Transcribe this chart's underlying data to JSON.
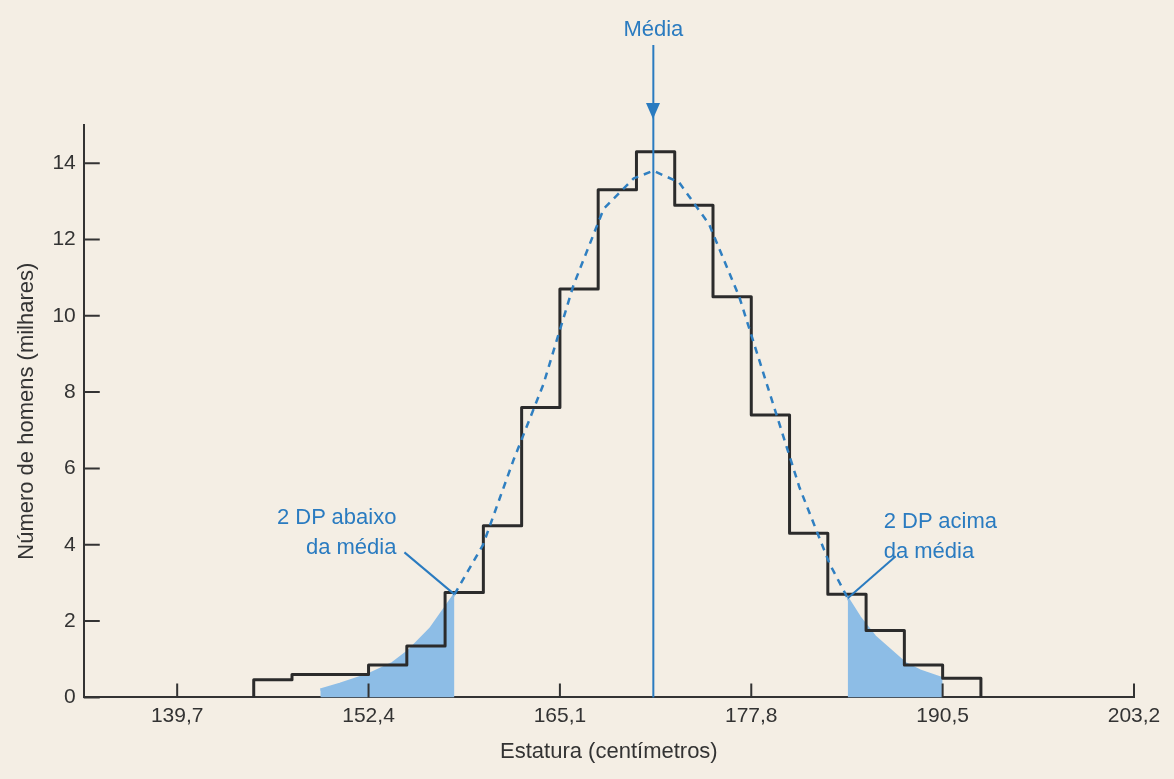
{
  "chart_data": {
    "type": "step",
    "xlabel": "Estatura (centímetros)",
    "ylabel": "Número de homens (milhares)",
    "series": [
      {
        "color": "#2b2b2b",
        "x": [
          144.78,
          144.78,
          147.32,
          149.86,
          152.4,
          154.94,
          157.48,
          160.02,
          162.56,
          165.1,
          167.64,
          170.18,
          172.72,
          175.26,
          177.8,
          180.34,
          182.88,
          185.42,
          187.96,
          190.5,
          193.04
        ],
        "values": [
          0,
          0.46,
          0.6,
          0.6,
          0.85,
          1.35,
          2.75,
          4.5,
          7.6,
          10.7,
          13.3,
          14.3,
          12.9,
          10.5,
          7.4,
          4.3,
          2.7,
          1.75,
          0.85,
          0.5,
          0
        ]
      },
      {
        "type": "area",
        "color": "#8dbde6",
        "x": [
          149.2,
          150.5,
          152.4,
          154,
          155,
          156.5,
          158.1
        ],
        "values": [
          0.2,
          0.35,
          0.6,
          0.9,
          1.2,
          1.8,
          2.7
        ]
      },
      {
        "type": "area",
        "color": "#8dbde6",
        "x": [
          184.2,
          185,
          186,
          187,
          188,
          189,
          190.5
        ],
        "values": [
          2.6,
          2.1,
          1.6,
          1.25,
          0.9,
          0.7,
          0.5
        ]
      },
      {
        "type": "line",
        "color": "#2f7fc1",
        "line_style": "dashed",
        "marker": "none",
        "x": [
          158.1,
          160,
          162,
          164,
          166,
          168,
          170,
          171.3,
          173,
          175,
          177,
          179,
          181,
          183,
          184.2
        ],
        "values": [
          2.7,
          4.0,
          6.2,
          8.2,
          10.8,
          12.8,
          13.6,
          13.8,
          13.5,
          12.4,
          10.5,
          8.0,
          5.5,
          3.5,
          2.6
        ]
      }
    ],
    "ref_lines": [
      {
        "axis": "x",
        "value": 171.3,
        "label": "Média",
        "color": "#2a7bc0"
      }
    ],
    "annotations": [
      {
        "text": "2 DP abaixo\nda média",
        "x": 158.1,
        "y": 2.7
      },
      {
        "text": "2 DP acima\nda média",
        "x": 184.2,
        "y": 2.6
      }
    ],
    "xlim": [
      133.5,
      203.2
    ],
    "ylim": [
      0,
      15
    ],
    "xticks": [
      {
        "value": 139.7,
        "label": "139,7"
      },
      {
        "value": 152.4,
        "label": "152,4"
      },
      {
        "value": 165.1,
        "label": "165,1"
      },
      {
        "value": 177.8,
        "label": "177,8"
      },
      {
        "value": 190.5,
        "label": "190,5"
      },
      {
        "value": 203.2,
        "label": "203,2"
      }
    ],
    "yticks": [
      0,
      2,
      4,
      6,
      8,
      10,
      12,
      14
    ],
    "grid": false,
    "legend": false
  }
}
